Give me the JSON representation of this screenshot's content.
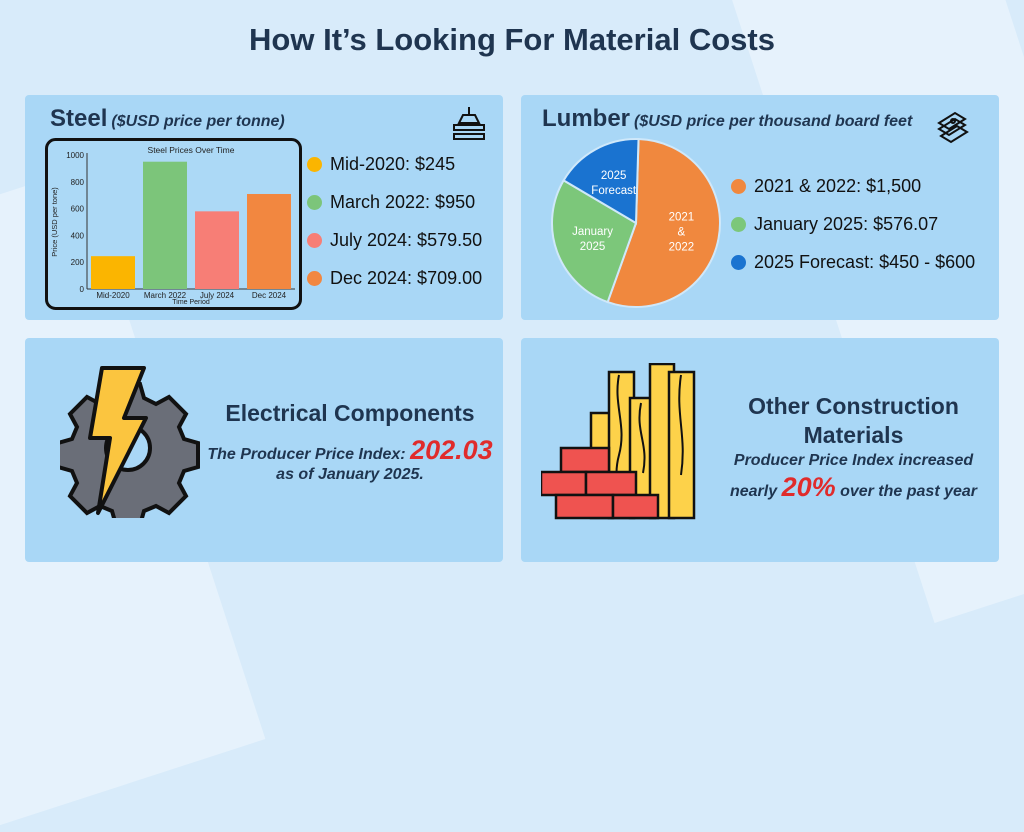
{
  "title": "How It’s Looking For Material Costs",
  "steel": {
    "heading": "Steel",
    "subheading": "($USD price per tonne)",
    "icon": "steel-beam-crane-icon",
    "legend": [
      {
        "label": "Mid-2020: $245",
        "color": "#fbb500"
      },
      {
        "label": "March 2022: $950",
        "color": "#7cc57a"
      },
      {
        "label": "July 2024: $579.50",
        "color": "#f77e76"
      },
      {
        "label": "Dec 2024: $709.00",
        "color": "#f28740"
      }
    ]
  },
  "lumber": {
    "heading": "Lumber",
    "subheading": "($USD price per thousand board feet",
    "icon": "lumber-stack-icon",
    "legend": [
      {
        "label": "2021 & 2022: $1,500",
        "color": "#f0883e"
      },
      {
        "label": "January 2025: $576.07",
        "color": "#7cc77a"
      },
      {
        "label": "2025 Forecast: $450 - $600",
        "color": "#1a73d0"
      }
    ]
  },
  "electrical": {
    "heading": "Electrical Components",
    "line1": "The Producer Price Index:",
    "value": "202.03",
    "line2": "as of January 2025.",
    "icon": "gear-lightning-icon"
  },
  "other": {
    "heading1": "Other Construction",
    "heading2": "Materials",
    "line1": "Producer Price Index increased",
    "pre": "nearly",
    "value": "20%",
    "post": "over the past year",
    "icon": "bricks-and-planks-icon"
  },
  "chart_data": [
    {
      "type": "bar",
      "title": "Steel Prices Over Time",
      "xlabel": "Time Period",
      "ylabel": "Price (USD per tone)",
      "categories": [
        "Mid-2020",
        "March 2022",
        "July 2024",
        "Dec 2024"
      ],
      "values": [
        245,
        950,
        579.5,
        709
      ],
      "colors": [
        "#fbb500",
        "#7cc57a",
        "#f77e76",
        "#f28740"
      ],
      "ylim": [
        0,
        1000
      ],
      "yticks": [
        0,
        200,
        400,
        600,
        800,
        1000
      ],
      "grid": false
    },
    {
      "type": "pie",
      "labels": [
        [
          "2021",
          "&",
          "2022"
        ],
        [
          "January",
          "2025"
        ],
        [
          "2025",
          "Forecast"
        ]
      ],
      "values": [
        55,
        28,
        17
      ],
      "colors": [
        "#f0883e",
        "#7cc77a",
        "#1a73d0"
      ]
    }
  ]
}
